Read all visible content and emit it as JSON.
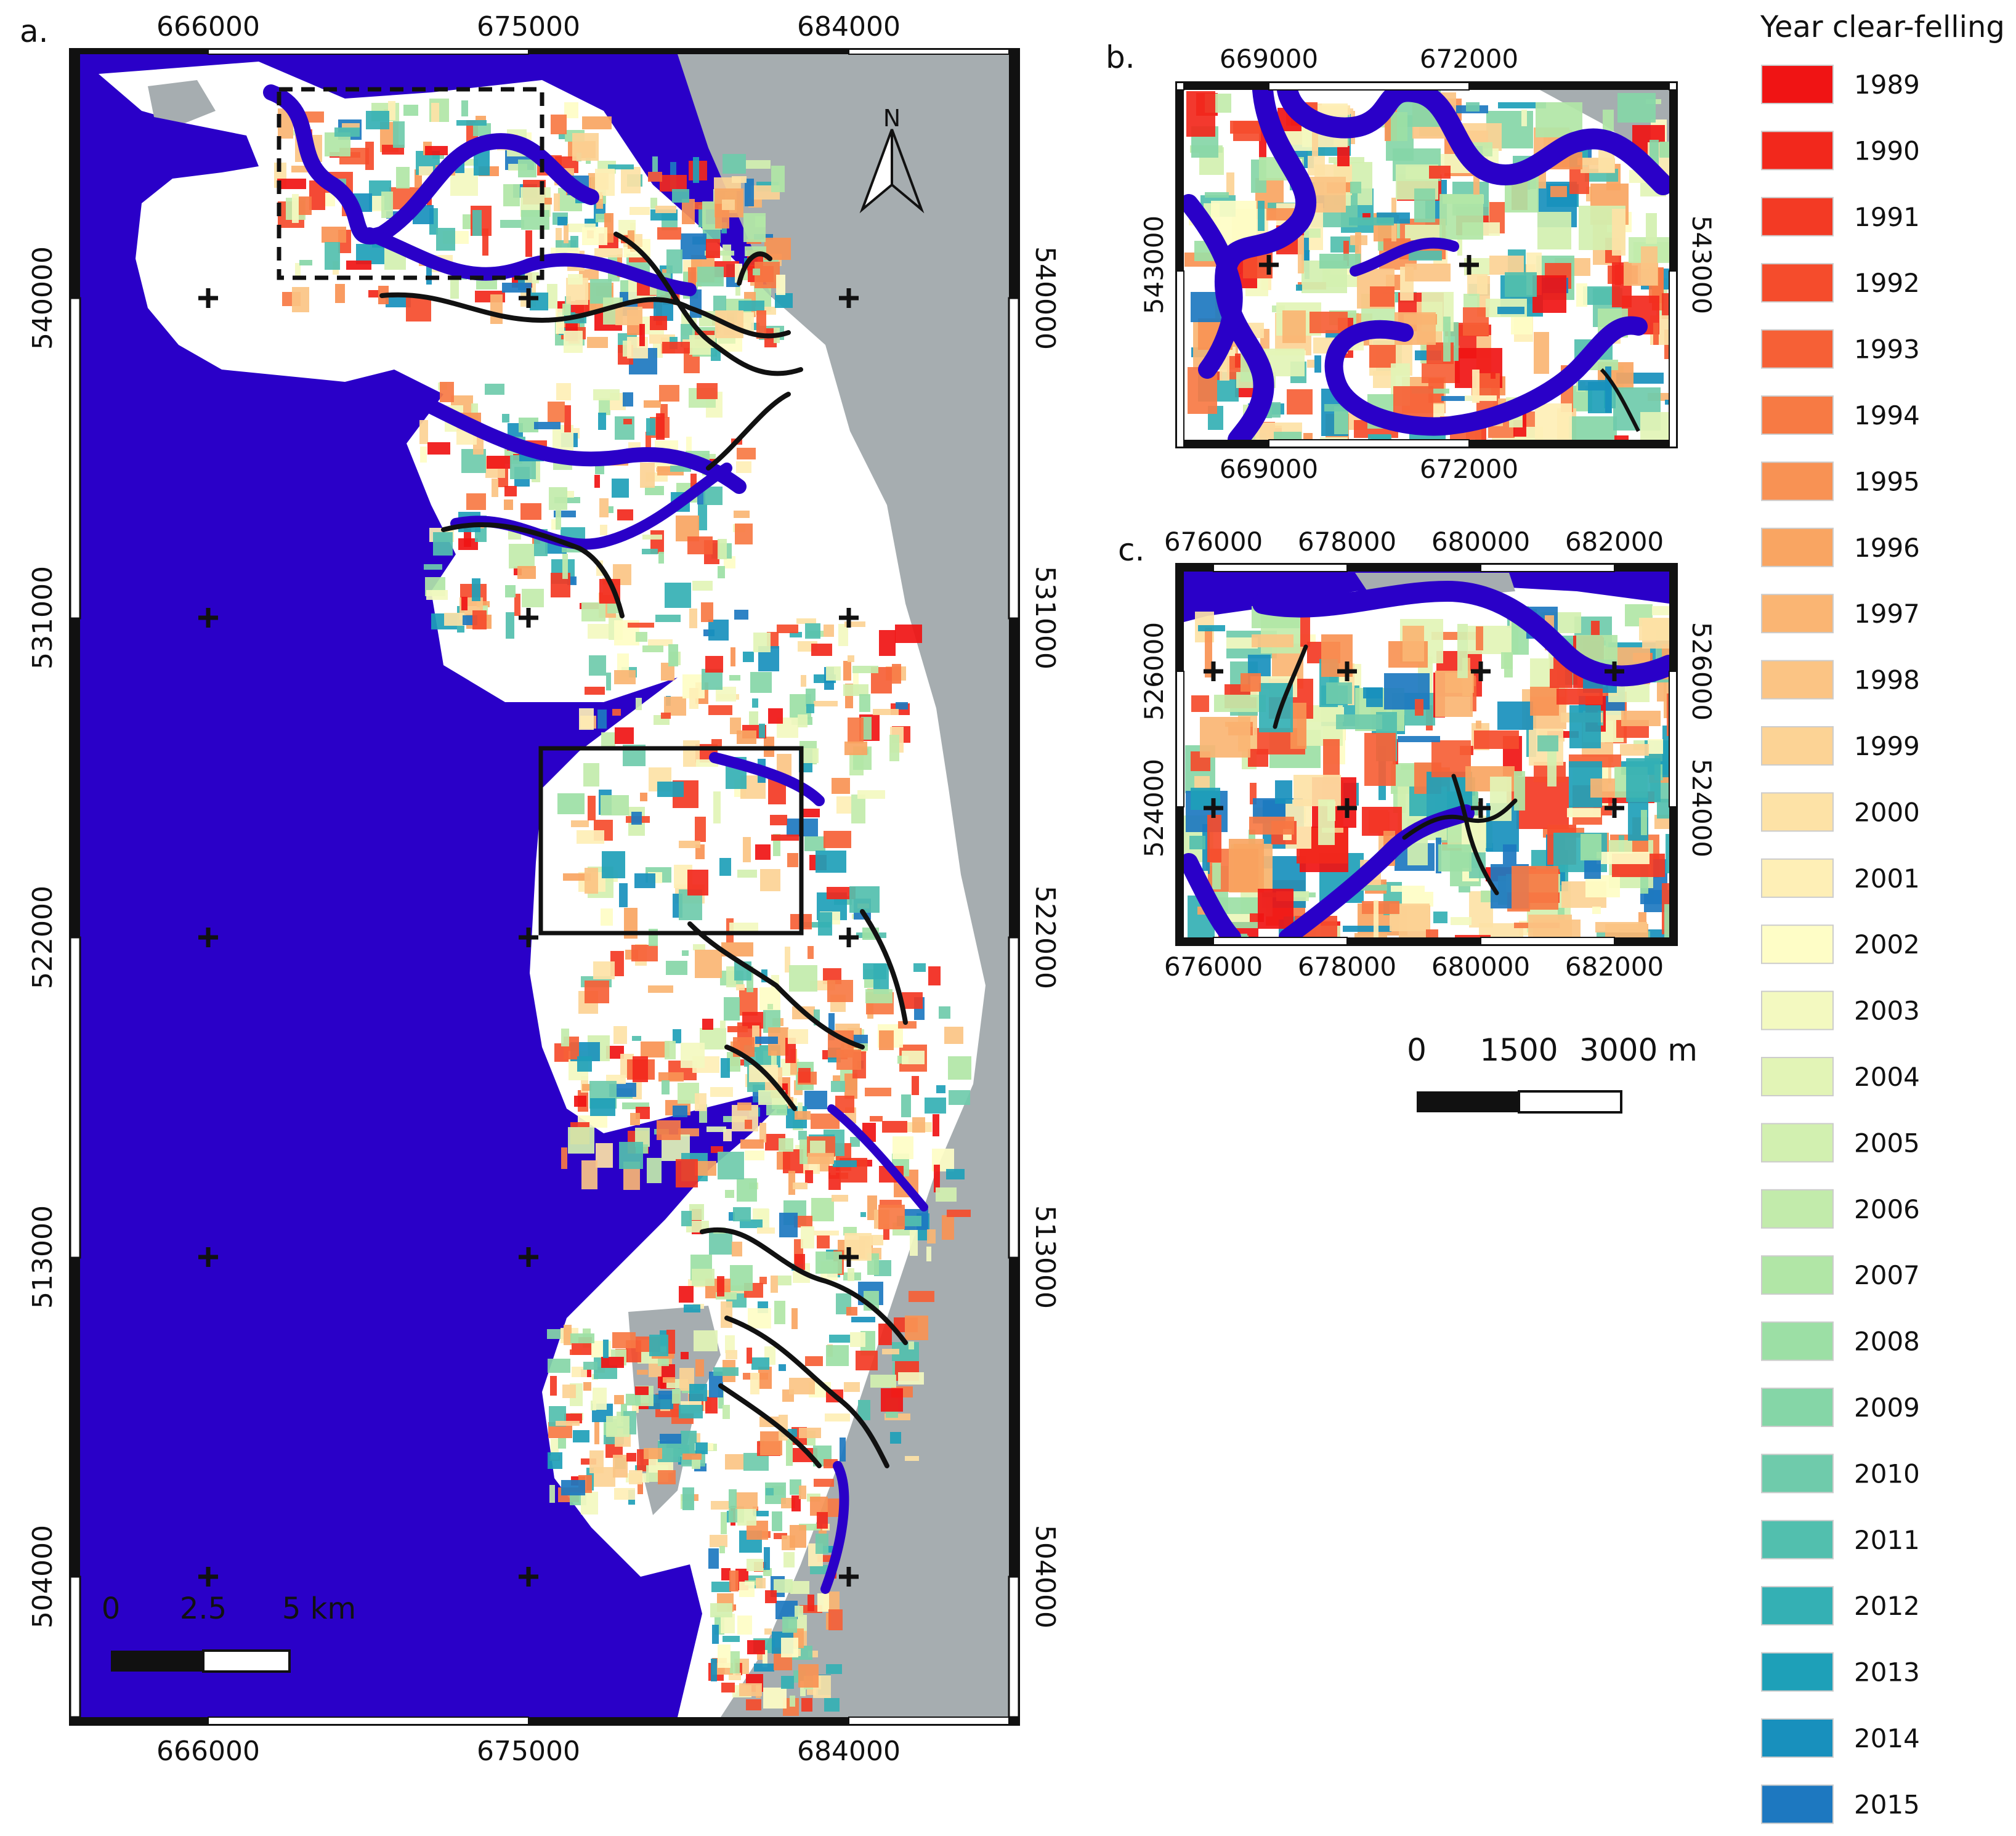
{
  "panels": {
    "a": {
      "label": "a.",
      "top_ticks": [
        "666000",
        "675000",
        "684000"
      ],
      "bottom_ticks": [
        "666000",
        "675000",
        "684000"
      ],
      "left_ticks": [
        "540000",
        "531000",
        "522000",
        "513000",
        "504000"
      ],
      "right_ticks": [
        "540000",
        "531000",
        "522000",
        "513000",
        "504000"
      ],
      "scalebar": [
        "0",
        "2.5",
        "5 km"
      ],
      "north_label": "N"
    },
    "b": {
      "label": "b.",
      "top_ticks": [
        "669000",
        "672000"
      ],
      "bottom_ticks": [
        "669000",
        "672000"
      ],
      "left_ticks": [
        "543000"
      ],
      "right_ticks": [
        "543000"
      ]
    },
    "c": {
      "label": "c.",
      "top_ticks": [
        "676000",
        "678000",
        "680000",
        "682000"
      ],
      "bottom_ticks": [
        "676000",
        "678000",
        "680000",
        "682000"
      ],
      "left_ticks": [
        "526000",
        "524000"
      ],
      "right_ticks": [
        "526000",
        "524000"
      ],
      "scalebar": [
        "0",
        "1500",
        "3000 m"
      ]
    }
  },
  "legend": {
    "title": "Year clear-felling",
    "items": [
      {
        "year": "1989",
        "color": "#f01414"
      },
      {
        "year": "1990",
        "color": "#f2281c"
      },
      {
        "year": "1991",
        "color": "#f33a24"
      },
      {
        "year": "1992",
        "color": "#f54c2c"
      },
      {
        "year": "1993",
        "color": "#f66036"
      },
      {
        "year": "1994",
        "color": "#f77a44"
      },
      {
        "year": "1995",
        "color": "#f89254"
      },
      {
        "year": "1996",
        "color": "#f9a562"
      },
      {
        "year": "1997",
        "color": "#fab573"
      },
      {
        "year": "1998",
        "color": "#fbc484"
      },
      {
        "year": "1999",
        "color": "#fcd395"
      },
      {
        "year": "2000",
        "color": "#fde2a6"
      },
      {
        "year": "2001",
        "color": "#feefb6"
      },
      {
        "year": "2002",
        "color": "#fefdc6"
      },
      {
        "year": "2003",
        "color": "#f3f9c0"
      },
      {
        "year": "2004",
        "color": "#e2f4b6"
      },
      {
        "year": "2005",
        "color": "#d2f0b0"
      },
      {
        "year": "2006",
        "color": "#c2ebab"
      },
      {
        "year": "2007",
        "color": "#b1e6a6"
      },
      {
        "year": "2008",
        "color": "#9cdfa5"
      },
      {
        "year": "2009",
        "color": "#85d6a7"
      },
      {
        "year": "2010",
        "color": "#6fcbab"
      },
      {
        "year": "2011",
        "color": "#52bfae"
      },
      {
        "year": "2012",
        "color": "#34b0b4"
      },
      {
        "year": "2013",
        "color": "#1ea0b8"
      },
      {
        "year": "2014",
        "color": "#1890bd"
      },
      {
        "year": "2015",
        "color": "#1d78c0"
      }
    ]
  },
  "colors": {
    "water": "#2a00c8",
    "land_outside": "#a6adb0",
    "mangrove_background": "#ffffff",
    "channel": "#111111"
  }
}
